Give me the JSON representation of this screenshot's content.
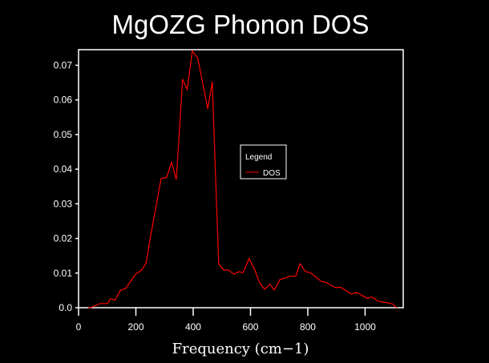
{
  "chart_data": {
    "type": "line",
    "title": "MgOZG Phonon DOS",
    "xlabel": "Frequency (cm−1)",
    "ylabel": "",
    "xlim": [
      0,
      1133
    ],
    "ylim": [
      0,
      0.0745
    ],
    "x_ticks": [
      0,
      200,
      400,
      600,
      800,
      1000
    ],
    "x_tick_labels": [
      "0",
      "200",
      "400",
      "600",
      "800",
      "1000"
    ],
    "y_ticks": [
      0,
      0.01,
      0.02,
      0.03,
      0.04,
      0.05,
      0.06,
      0.07
    ],
    "y_tick_labels": [
      "0.0",
      "0.01",
      "0.02",
      "0.03",
      "0.04",
      "0.05",
      "0.06",
      "0.07"
    ],
    "grid": false,
    "legend": {
      "title": "Legend",
      "placement": "center-right",
      "entries": [
        "DOS"
      ]
    },
    "series": [
      {
        "name": "DOS",
        "color": "#ff0000",
        "x": [
          34,
          41,
          75,
          101,
          111,
          127,
          146,
          164,
          199,
          220,
          236,
          248,
          288,
          307,
          325,
          341,
          363,
          379,
          397,
          416,
          451,
          467,
          468,
          489,
          507,
          521,
          542,
          560,
          574,
          595,
          616,
          632,
          649,
          668,
          683,
          703,
          723,
          737,
          758,
          773,
          792,
          809,
          847,
          863,
          896,
          915,
          952,
          971,
          1008,
          1024,
          1045,
          1073,
          1095,
          1110
        ],
        "y": [
          0,
          0,
          0.0012,
          0.0012,
          0.0026,
          0.0022,
          0.005,
          0.0055,
          0.0097,
          0.0108,
          0.013,
          0.019,
          0.0373,
          0.0376,
          0.042,
          0.037,
          0.066,
          0.063,
          0.0741,
          0.072,
          0.0574,
          0.0653,
          0.0616,
          0.0127,
          0.0108,
          0.011,
          0.0097,
          0.0104,
          0.0101,
          0.0142,
          0.0107,
          0.0072,
          0.0053,
          0.0068,
          0.0051,
          0.0082,
          0.0086,
          0.0091,
          0.0091,
          0.0127,
          0.0104,
          0.0101,
          0.0076,
          0.0073,
          0.0058,
          0.0059,
          0.004,
          0.0044,
          0.0027,
          0.0031,
          0.0019,
          0.0015,
          0.0011,
          0
        ]
      }
    ]
  }
}
